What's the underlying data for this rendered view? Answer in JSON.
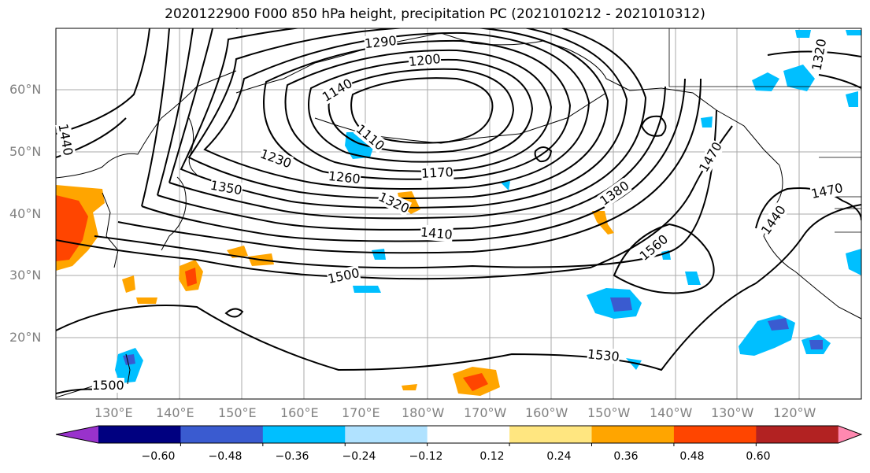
{
  "title": "2020122900 F000 850 hPa height, precipitation PC (2021010212 - 2021010312)",
  "lat_labels": [
    "60°N",
    "50°N",
    "40°N",
    "30°N",
    "20°N"
  ],
  "lon_labels": [
    "130°E",
    "140°E",
    "150°E",
    "160°E",
    "170°E",
    "180°W",
    "170°W",
    "160°W",
    "150°W",
    "140°W",
    "130°W",
    "120°W"
  ],
  "contour_labels": [
    "1290",
    "1200",
    "1140",
    "1110",
    "1230",
    "1260",
    "1170",
    "1350",
    "1320",
    "1380",
    "1410",
    "1440",
    "1470",
    "1500",
    "1560",
    "1530",
    "1500",
    "1470",
    "1440",
    "1320"
  ],
  "colorbar": {
    "tick_labels": [
      "−0.60",
      "−0.48",
      "−0.36",
      "−0.24",
      "−0.12",
      "0.12",
      "0.24",
      "0.36",
      "0.48",
      "0.60"
    ],
    "colors": [
      "#9932cc",
      "#000080",
      "#3a5bd0",
      "#00bfff",
      "#b0e2ff",
      "#ffffff",
      "#ffe680",
      "#ffa500",
      "#ff4500",
      "#b22222",
      "#ff88b0"
    ]
  }
}
